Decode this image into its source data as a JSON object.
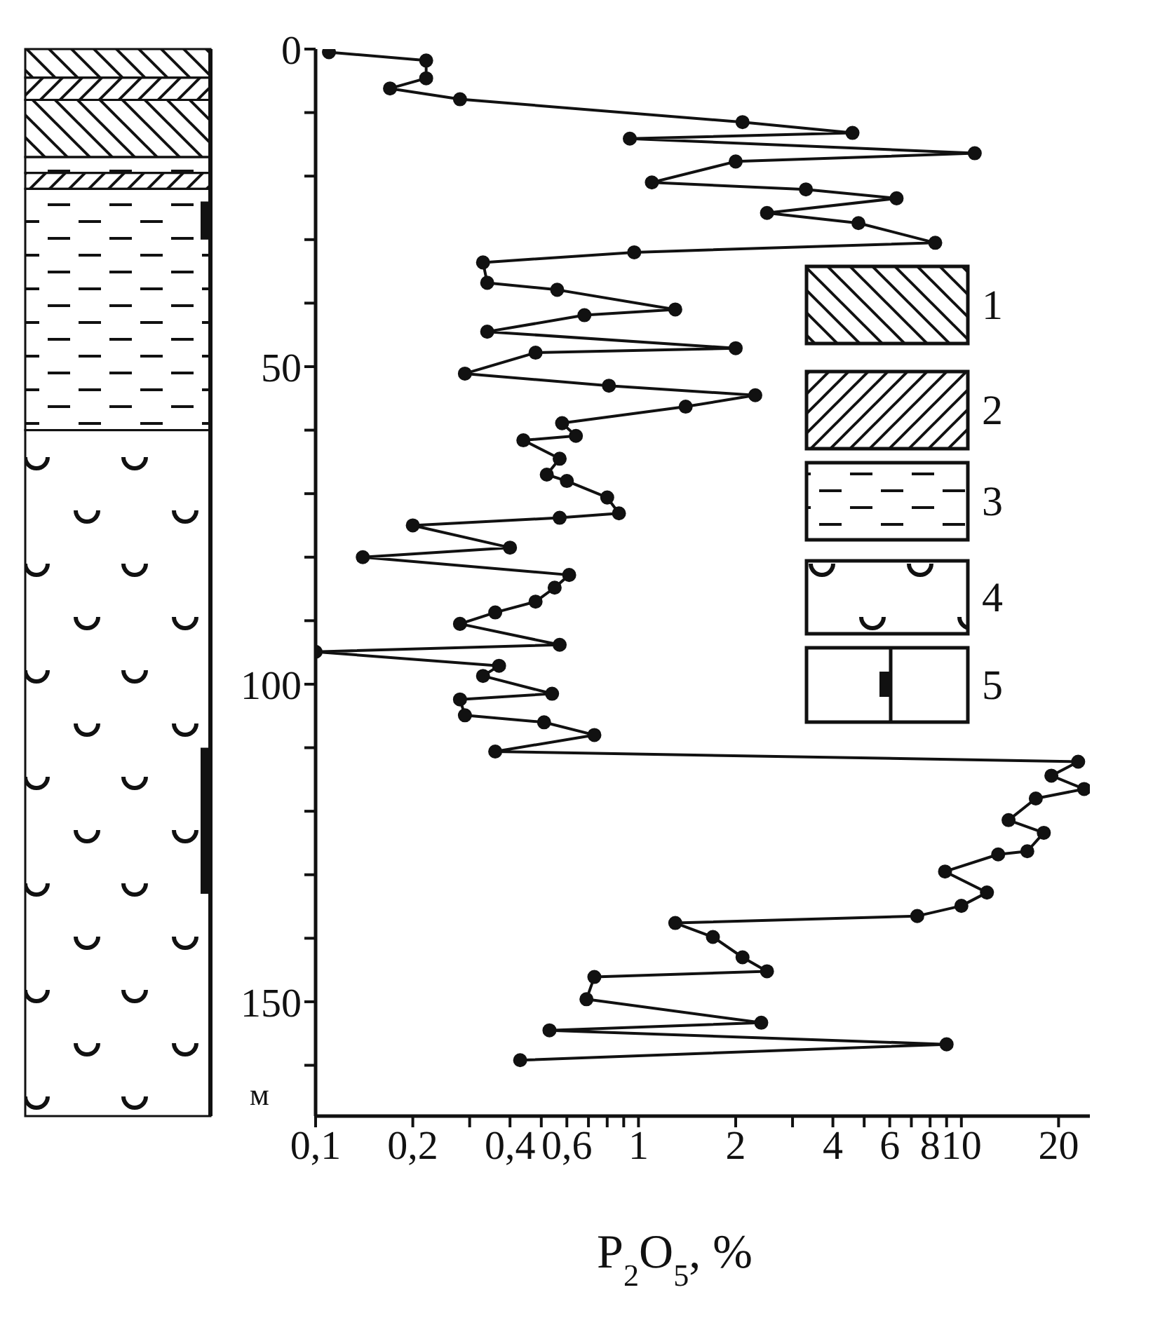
{
  "chart_data": {
    "type": "line",
    "xlabel": "P$_{2}$O$_{5}$, %",
    "ylabel": "м",
    "log": "x",
    "marker": "circle",
    "xlim": [
      0.1,
      25
    ],
    "xticks": [
      {
        "value": 0.1,
        "label": "0,1"
      },
      {
        "value": 0.2,
        "label": "0,2"
      },
      {
        "value": 0.3,
        "label": null
      },
      {
        "value": 0.4,
        "label": "0,4"
      },
      {
        "value": 0.5,
        "label": null
      },
      {
        "value": 0.6,
        "label": "0,6"
      },
      {
        "value": 0.7,
        "label": null
      },
      {
        "value": 0.8,
        "label": null
      },
      {
        "value": 0.9,
        "label": null
      },
      1,
      2,
      {
        "value": 3,
        "label": null
      },
      4,
      {
        "value": 5,
        "label": null
      },
      6,
      {
        "value": 7,
        "label": null
      },
      8,
      {
        "value": 9,
        "label": null
      },
      10,
      20
    ],
    "ylim": [
      168,
      0
    ],
    "yticks": [
      0,
      {
        "value": 10,
        "label": null
      },
      {
        "value": 20,
        "label": null
      },
      {
        "value": 30,
        "label": null
      },
      {
        "value": 40,
        "label": null
      },
      50,
      {
        "value": 60,
        "label": null
      },
      {
        "value": 70,
        "label": null
      },
      {
        "value": 80,
        "label": null
      },
      {
        "value": 90,
        "label": null
      },
      100,
      {
        "value": 110,
        "label": null
      },
      {
        "value": 120,
        "label": null
      },
      {
        "value": 130,
        "label": null
      },
      {
        "value": 140,
        "label": null
      },
      150,
      {
        "value": 160,
        "label": null
      }
    ],
    "series": [
      {
        "color": "#111111",
        "x": [
          0.11,
          0.22,
          0.22,
          0.17,
          0.28,
          2.1,
          4.6,
          0.94,
          11,
          2.0,
          1.1,
          3.3,
          6.3,
          2.5,
          4.8,
          8.3,
          0.97,
          0.33,
          0.34,
          0.56,
          1.3,
          0.68,
          0.34,
          2.0,
          0.48,
          0.29,
          0.81,
          2.3,
          1.4,
          0.58,
          0.64,
          0.44,
          0.57,
          0.52,
          0.6,
          0.8,
          0.87,
          0.57,
          0.2,
          0.4,
          0.14,
          0.61,
          0.55,
          0.48,
          0.36,
          0.28,
          0.57,
          0.1,
          0.37,
          0.33,
          0.54,
          0.28,
          0.29,
          0.51,
          0.73,
          0.36,
          23,
          19,
          24,
          17,
          14,
          18,
          16,
          13,
          8.9,
          12,
          10,
          7.3,
          1.3,
          1.7,
          2.1,
          2.5,
          0.73,
          0.69,
          2.4,
          0.53,
          9,
          0.43
        ],
        "values": [
          0.5,
          1.8,
          4.6,
          6.2,
          7.9,
          11.5,
          13.2,
          14.1,
          16.4,
          17.7,
          21,
          22.1,
          23.5,
          25.8,
          27.4,
          30.5,
          32,
          33.6,
          36.8,
          37.9,
          41,
          41.9,
          44.5,
          47.1,
          47.8,
          51.1,
          53,
          54.5,
          56.3,
          58.9,
          60.9,
          61.6,
          64.5,
          67,
          68,
          70.6,
          73.1,
          73.8,
          75,
          78.5,
          80,
          82.8,
          84.8,
          87,
          88.7,
          90.5,
          93.8,
          94.9,
          97.1,
          98.7,
          101.5,
          102.4,
          104.9,
          106,
          108,
          110.6,
          112.2,
          114.4,
          116.5,
          118,
          121.4,
          123.4,
          126.3,
          126.8,
          129.5,
          132.8,
          134.9,
          136.5,
          137.6,
          139.8,
          143,
          145.2,
          146.1,
          149.6,
          153.3,
          154.5,
          156.7,
          159.2
        ]
      }
    ],
    "annotations": [
      "1",
      "2",
      "3",
      "4",
      "5"
    ]
  }
}
